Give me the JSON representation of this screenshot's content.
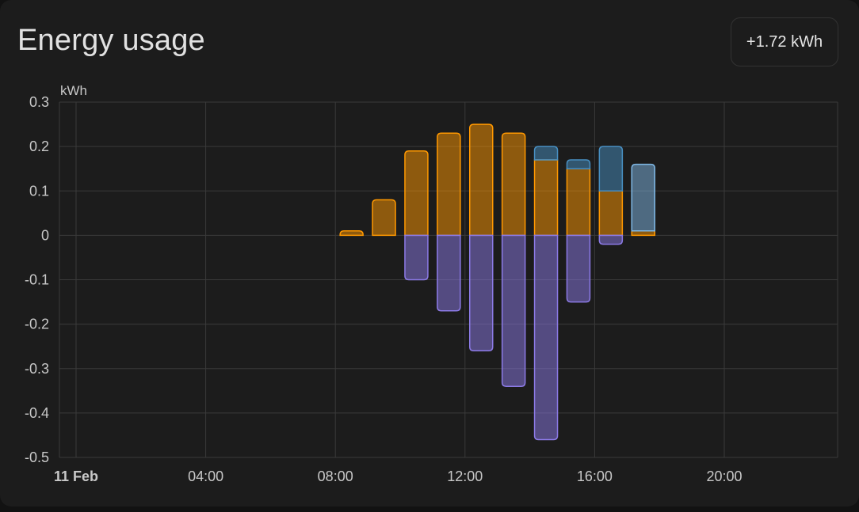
{
  "card": {
    "title": "Energy usage",
    "total": "+1.72 kWh"
  },
  "colors": {
    "solar": "#ff9800",
    "grid_import": "#488fc2",
    "battery_in": "#8c7ae6",
    "battery_out": "#7fb8e6",
    "grid": "#3a3a3a",
    "text": "#c8c8c8"
  },
  "chart_data": {
    "type": "bar",
    "ylabel": "kWh",
    "ylim": [
      -0.5,
      0.3
    ],
    "yticks": [
      0.3,
      0.2,
      0.1,
      0,
      -0.1,
      -0.2,
      -0.3,
      -0.4,
      -0.5
    ],
    "ytick_labels": [
      "0.3",
      "0.2",
      "0.1",
      "0",
      "-0.1",
      "-0.2",
      "-0.3",
      "-0.4",
      "-0.5"
    ],
    "xticks": [
      {
        "label": "11 Feb",
        "hour": 0,
        "bold": true
      },
      {
        "label": "04:00",
        "hour": 4
      },
      {
        "label": "08:00",
        "hour": 8
      },
      {
        "label": "12:00",
        "hour": 12
      },
      {
        "label": "16:00",
        "hour": 16
      },
      {
        "label": "20:00",
        "hour": 20
      }
    ],
    "x_hours": [
      8,
      9,
      10,
      11,
      12,
      13,
      14,
      15,
      16,
      17
    ],
    "series": [
      {
        "key": "solar",
        "stack": "pos",
        "values": [
          0.01,
          0.08,
          0.19,
          0.23,
          0.25,
          0.23,
          0.17,
          0.15,
          0.1,
          0.01
        ]
      },
      {
        "key": "grid_import",
        "stack": "pos",
        "values": [
          0,
          0,
          0,
          0,
          0,
          0,
          0.03,
          0.02,
          0.1,
          0
        ]
      },
      {
        "key": "battery_out",
        "stack": "pos",
        "values": [
          0,
          0,
          0,
          0,
          0,
          0,
          0,
          0,
          0,
          0.15
        ]
      },
      {
        "key": "battery_in",
        "stack": "neg",
        "values": [
          0,
          0,
          -0.1,
          -0.17,
          -0.26,
          -0.34,
          -0.46,
          -0.15,
          -0.02,
          0
        ]
      }
    ]
  }
}
